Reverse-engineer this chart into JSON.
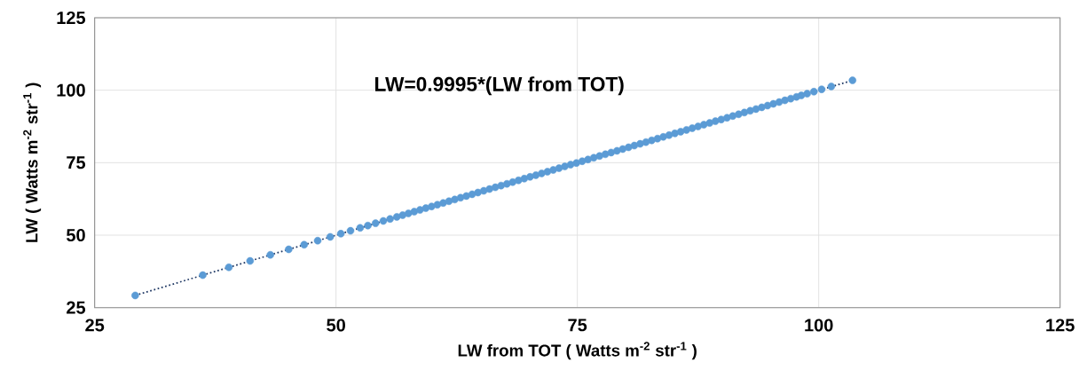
{
  "chart_data": {
    "type": "scatter",
    "xlabel": "LW from TOT ( Watts m$^{-2}$ str$^{-1}$ )",
    "ylabel": "LW ( Watts m$^{-2}$ str$^{-1}$ )",
    "annotations": [
      "LW=0.9995*(LW from TOT)"
    ],
    "xlim": [
      25,
      125
    ],
    "ylim": [
      25,
      125
    ],
    "xticks": [
      25,
      50,
      75,
      100,
      125
    ],
    "yticks": [
      25,
      50,
      75,
      100,
      125
    ],
    "grid": true,
    "series": [
      {
        "color": "#5b9bd5",
        "marker": "circle",
        "x": [
          29.2,
          36.2,
          38.9,
          41.1,
          43.2,
          45.1,
          46.7,
          48.1,
          49.4,
          50.5,
          51.5,
          52.5,
          53.3,
          54.1,
          54.9,
          55.6,
          56.3,
          56.9,
          57.5,
          58.1,
          58.7,
          59.3,
          59.9,
          60.5,
          61.1,
          61.7,
          62.3,
          62.9,
          63.5,
          64.1,
          64.7,
          65.3,
          65.9,
          66.5,
          67.1,
          67.7,
          68.3,
          68.9,
          69.5,
          70.1,
          70.7,
          71.3,
          71.9,
          72.5,
          73.1,
          73.7,
          74.3,
          74.9,
          75.5,
          76.1,
          76.7,
          77.3,
          77.9,
          78.5,
          79.1,
          79.7,
          80.3,
          80.9,
          81.5,
          82.1,
          82.7,
          83.3,
          83.9,
          84.5,
          85.1,
          85.7,
          86.3,
          86.9,
          87.5,
          88.1,
          88.7,
          89.3,
          89.9,
          90.5,
          91.1,
          91.7,
          92.3,
          92.9,
          93.5,
          94.1,
          94.7,
          95.3,
          95.9,
          96.5,
          97.1,
          97.7,
          98.2,
          98.8,
          99.5,
          100.3,
          101.3,
          103.5
        ],
        "values": [
          29.2,
          36.2,
          38.9,
          41.1,
          43.2,
          45.1,
          46.7,
          48.1,
          49.4,
          50.5,
          51.5,
          52.5,
          53.3,
          54.1,
          54.9,
          55.6,
          56.3,
          56.9,
          57.5,
          58.1,
          58.7,
          59.3,
          59.9,
          60.5,
          61.1,
          61.7,
          62.3,
          62.9,
          63.5,
          64.1,
          64.7,
          65.3,
          65.9,
          66.5,
          67.1,
          67.7,
          68.3,
          68.9,
          69.5,
          70.1,
          70.7,
          71.3,
          71.9,
          72.5,
          73.1,
          73.7,
          74.3,
          74.9,
          75.5,
          76.1,
          76.7,
          77.3,
          77.9,
          78.5,
          79.1,
          79.7,
          80.3,
          80.9,
          81.5,
          82.1,
          82.7,
          83.3,
          83.9,
          84.5,
          85.1,
          85.7,
          86.3,
          86.9,
          87.5,
          88.1,
          88.7,
          89.3,
          89.9,
          90.5,
          91.1,
          91.7,
          92.3,
          92.9,
          93.5,
          94.1,
          94.7,
          95.3,
          95.9,
          96.5,
          97.1,
          97.7,
          98.2,
          98.8,
          99.5,
          100.3,
          101.3,
          103.4
        ]
      },
      {
        "type": "line",
        "color": "#1f3864",
        "line_style": "dotted",
        "marker": "none",
        "x": [
          29.2,
          103.5
        ],
        "values": [
          29.2,
          103.4
        ]
      }
    ]
  }
}
